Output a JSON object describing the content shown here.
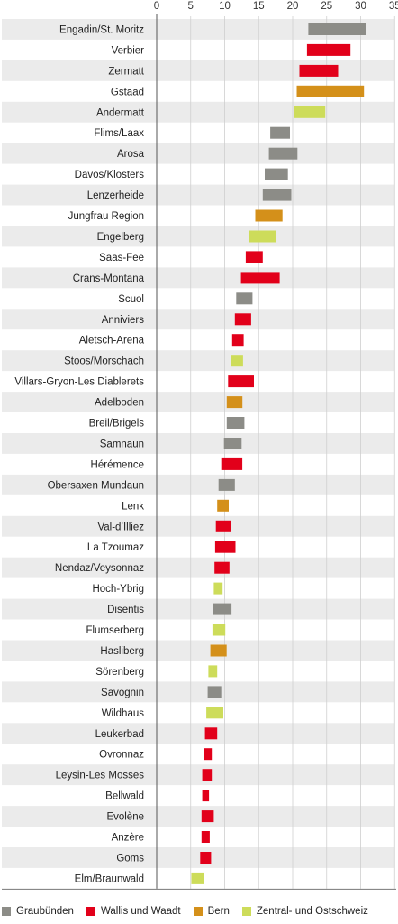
{
  "chart_data": {
    "type": "bar",
    "orientation": "horizontal-range",
    "title": "",
    "xlabel": "",
    "ylabel": "",
    "xlim": [
      0,
      35
    ],
    "xticks": [
      "0",
      "5",
      "10",
      "15",
      "20",
      "25",
      "30",
      "35"
    ],
    "grid": true,
    "legend_position": "bottom",
    "legend": [
      {
        "name": "Graubünden",
        "color": "#8c8c87"
      },
      {
        "name": "Wallis und Waadt",
        "color": "#e2001a"
      },
      {
        "name": "Bern",
        "color": "#d4901a"
      },
      {
        "name": "Zentral- und Ostschweiz",
        "color": "#cddc5a"
      }
    ],
    "categories": [
      {
        "name": "Engadin/St. Moritz",
        "group": 0,
        "start": 22.3,
        "end": 30.8
      },
      {
        "name": "Verbier",
        "group": 1,
        "start": 22.1,
        "end": 28.5
      },
      {
        "name": "Zermatt",
        "group": 1,
        "start": 21.0,
        "end": 26.7
      },
      {
        "name": "Gstaad",
        "group": 2,
        "start": 20.6,
        "end": 30.5
      },
      {
        "name": "Andermatt",
        "group": 3,
        "start": 20.2,
        "end": 24.8
      },
      {
        "name": "Flims/Laax",
        "group": 0,
        "start": 16.7,
        "end": 19.6
      },
      {
        "name": "Arosa",
        "group": 0,
        "start": 16.5,
        "end": 20.7
      },
      {
        "name": "Davos/Klosters",
        "group": 0,
        "start": 15.9,
        "end": 19.3
      },
      {
        "name": "Lenzerheide",
        "group": 0,
        "start": 15.6,
        "end": 19.8
      },
      {
        "name": "Jungfrau Region",
        "group": 2,
        "start": 14.5,
        "end": 18.5
      },
      {
        "name": "Engelberg",
        "group": 3,
        "start": 13.6,
        "end": 17.6
      },
      {
        "name": "Saas-Fee",
        "group": 1,
        "start": 13.1,
        "end": 15.6
      },
      {
        "name": "Crans-Montana",
        "group": 1,
        "start": 12.4,
        "end": 18.1
      },
      {
        "name": "Scuol",
        "group": 0,
        "start": 11.7,
        "end": 14.1
      },
      {
        "name": "Anniviers",
        "group": 1,
        "start": 11.5,
        "end": 13.9
      },
      {
        "name": "Aletsch-Arena",
        "group": 1,
        "start": 11.1,
        "end": 12.8
      },
      {
        "name": "Stoos/Morschach",
        "group": 3,
        "start": 10.9,
        "end": 12.7
      },
      {
        "name": "Villars-Gryon-Les Diablerets",
        "group": 1,
        "start": 10.5,
        "end": 14.3
      },
      {
        "name": "Adelboden",
        "group": 2,
        "start": 10.3,
        "end": 12.6
      },
      {
        "name": "Breil/Brigels",
        "group": 0,
        "start": 10.3,
        "end": 12.9
      },
      {
        "name": "Samnaun",
        "group": 0,
        "start": 9.9,
        "end": 12.5
      },
      {
        "name": "Hérémence",
        "group": 1,
        "start": 9.5,
        "end": 12.6
      },
      {
        "name": "Obersaxen Mundaun",
        "group": 0,
        "start": 9.1,
        "end": 11.5
      },
      {
        "name": "Lenk",
        "group": 2,
        "start": 8.9,
        "end": 10.6
      },
      {
        "name": "Val-d’Illiez",
        "group": 1,
        "start": 8.7,
        "end": 10.9
      },
      {
        "name": "La Tzoumaz",
        "group": 1,
        "start": 8.6,
        "end": 11.6
      },
      {
        "name": "Nendaz/Veysonnaz",
        "group": 1,
        "start": 8.5,
        "end": 10.7
      },
      {
        "name": "Hoch-Ybrig",
        "group": 3,
        "start": 8.4,
        "end": 9.7
      },
      {
        "name": "Disentis",
        "group": 0,
        "start": 8.3,
        "end": 11.0
      },
      {
        "name": "Flumserberg",
        "group": 3,
        "start": 8.2,
        "end": 10.1
      },
      {
        "name": "Hasliberg",
        "group": 2,
        "start": 7.9,
        "end": 10.3
      },
      {
        "name": "Sörenberg",
        "group": 3,
        "start": 7.6,
        "end": 8.9
      },
      {
        "name": "Savognin",
        "group": 0,
        "start": 7.5,
        "end": 9.5
      },
      {
        "name": "Wildhaus",
        "group": 3,
        "start": 7.3,
        "end": 9.8
      },
      {
        "name": "Leukerbad",
        "group": 1,
        "start": 7.1,
        "end": 8.9
      },
      {
        "name": "Ovronnaz",
        "group": 1,
        "start": 6.9,
        "end": 8.1
      },
      {
        "name": "Leysin-Les Mosses",
        "group": 1,
        "start": 6.7,
        "end": 8.1
      },
      {
        "name": "Bellwald",
        "group": 1,
        "start": 6.7,
        "end": 7.7
      },
      {
        "name": "Evolène",
        "group": 1,
        "start": 6.6,
        "end": 8.4
      },
      {
        "name": "Anzère",
        "group": 1,
        "start": 6.6,
        "end": 7.8
      },
      {
        "name": "Goms",
        "group": 1,
        "start": 6.4,
        "end": 8.0
      },
      {
        "name": "Elm/Braunwald",
        "group": 3,
        "start": 5.1,
        "end": 6.9
      }
    ]
  }
}
